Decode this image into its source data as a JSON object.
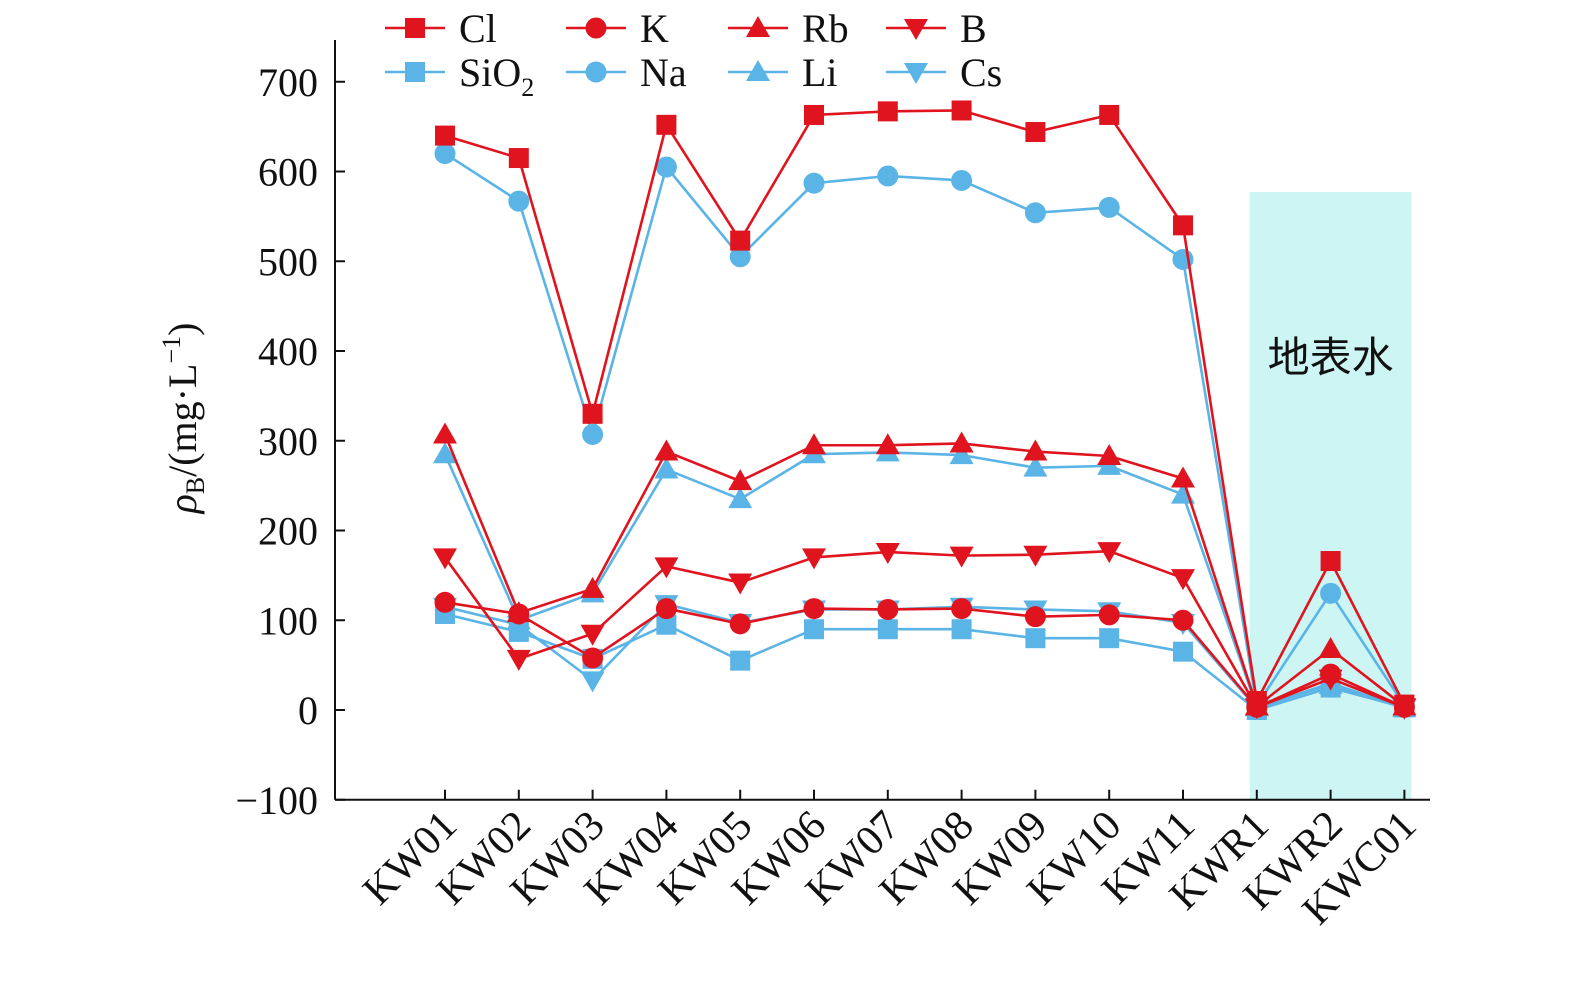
{
  "chart_data": {
    "type": "line",
    "title": "",
    "xlabel": "",
    "ylabel": {
      "symbol": "ρ",
      "subscript": "B",
      "unit_prefix": "/(mg·L",
      "exponent": "−1",
      "unit_suffix": ")"
    },
    "ylim": [
      -100,
      750
    ],
    "yticks": [
      -100,
      0,
      100,
      200,
      300,
      400,
      500,
      600,
      700
    ],
    "ytick_labels": [
      "−100",
      "0",
      "100",
      "200",
      "300",
      "400",
      "500",
      "600",
      "700"
    ],
    "categories": [
      "KW01",
      "KW02",
      "KW03",
      "KW04",
      "KW05",
      "KW06",
      "KW07",
      "KW08",
      "KW09",
      "KW10",
      "KW11",
      "KWR1",
      "KWR2",
      "KWC01"
    ],
    "shaded_region": {
      "from_category": "KWR1",
      "to_category": "KWC01",
      "label": "地表水",
      "color": "#cdf5f3"
    },
    "series": [
      {
        "name": "SiO2",
        "legend_main": "SiO",
        "legend_sub": "2",
        "color": "#5ab4e6",
        "marker": "square",
        "values": [
          107,
          87,
          57,
          95,
          55,
          90,
          90,
          90,
          80,
          80,
          65,
          0,
          25,
          3
        ]
      },
      {
        "name": "Na",
        "legend_main": "Na",
        "legend_sub": "",
        "color": "#5ab4e6",
        "marker": "circle",
        "values": [
          620,
          567,
          307,
          605,
          505,
          587,
          595,
          590,
          554,
          560,
          502,
          5,
          130,
          5
        ]
      },
      {
        "name": "Li",
        "legend_main": "Li",
        "legend_sub": "",
        "color": "#5ab4e6",
        "marker": "triangle-up",
        "values": [
          285,
          100,
          130,
          268,
          235,
          285,
          287,
          284,
          270,
          272,
          240,
          3,
          28,
          2
        ]
      },
      {
        "name": "Cs",
        "legend_main": "Cs",
        "legend_sub": "",
        "color": "#5ab4e6",
        "marker": "triangle-down",
        "values": [
          115,
          95,
          33,
          118,
          97,
          112,
          112,
          115,
          112,
          110,
          97,
          2,
          30,
          2
        ]
      },
      {
        "name": "Cl",
        "legend_main": "Cl",
        "legend_sub": "",
        "color": "#e0141e",
        "marker": "square",
        "values": [
          640,
          615,
          330,
          652,
          523,
          663,
          667,
          668,
          644,
          663,
          540,
          10,
          166,
          6
        ]
      },
      {
        "name": "K",
        "legend_main": "K",
        "legend_sub": "",
        "color": "#e0141e",
        "marker": "circle",
        "values": [
          120,
          107,
          58,
          113,
          96,
          113,
          112,
          113,
          104,
          106,
          100,
          3,
          40,
          3
        ]
      },
      {
        "name": "Rb",
        "legend_main": "Rb",
        "legend_sub": "",
        "color": "#e0141e",
        "marker": "triangle-up",
        "values": [
          307,
          108,
          135,
          288,
          255,
          295,
          295,
          297,
          288,
          283,
          258,
          4,
          68,
          4
        ]
      },
      {
        "name": "B",
        "legend_main": "B",
        "legend_sub": "",
        "color": "#e0141e",
        "marker": "triangle-down",
        "values": [
          170,
          57,
          85,
          160,
          142,
          170,
          176,
          172,
          173,
          177,
          147,
          3,
          35,
          3
        ]
      }
    ],
    "legend": {
      "placement": "top",
      "rows": [
        [
          "Cl",
          "K",
          "Rb",
          "B"
        ],
        [
          "SiO2",
          "Na",
          "Li",
          "Cs"
        ]
      ]
    }
  }
}
